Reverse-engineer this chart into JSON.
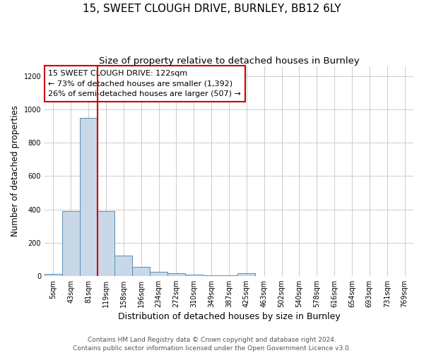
{
  "title": "15, SWEET CLOUGH DRIVE, BURNLEY, BB12 6LY",
  "subtitle": "Size of property relative to detached houses in Burnley",
  "xlabel": "Distribution of detached houses by size in Burnley",
  "ylabel": "Number of detached properties",
  "footer1": "Contains HM Land Registry data © Crown copyright and database right 2024.",
  "footer2": "Contains public sector information licensed under the Open Government Licence v3.0.",
  "annotation_line1": "15 SWEET CLOUGH DRIVE: 122sqm",
  "annotation_line2": "← 73% of detached houses are smaller (1,392)",
  "annotation_line3": "26% of semi-detached houses are larger (507) →",
  "categories": [
    "5sqm",
    "43sqm",
    "81sqm",
    "119sqm",
    "158sqm",
    "196sqm",
    "234sqm",
    "272sqm",
    "310sqm",
    "349sqm",
    "387sqm",
    "425sqm",
    "463sqm",
    "502sqm",
    "540sqm",
    "578sqm",
    "616sqm",
    "654sqm",
    "693sqm",
    "731sqm",
    "769sqm"
  ],
  "values": [
    10,
    390,
    950,
    390,
    120,
    55,
    25,
    15,
    8,
    5,
    2,
    15,
    0,
    0,
    0,
    0,
    0,
    0,
    0,
    0,
    0
  ],
  "bar_color": "#c8d8e8",
  "bar_edge_color": "#5a8db5",
  "red_line_x": 2.5,
  "red_line_color": "#cc0000",
  "annotation_box_color": "#ffffff",
  "annotation_box_edge": "#cc0000",
  "ylim": [
    0,
    1260
  ],
  "yticks": [
    0,
    200,
    400,
    600,
    800,
    1000,
    1200
  ],
  "bg_color": "#ffffff",
  "grid_color": "#cccccc",
  "title_fontsize": 11,
  "subtitle_fontsize": 9.5,
  "xlabel_fontsize": 9,
  "ylabel_fontsize": 8.5,
  "tick_fontsize": 7,
  "annotation_fontsize": 8,
  "footer_fontsize": 6.5
}
